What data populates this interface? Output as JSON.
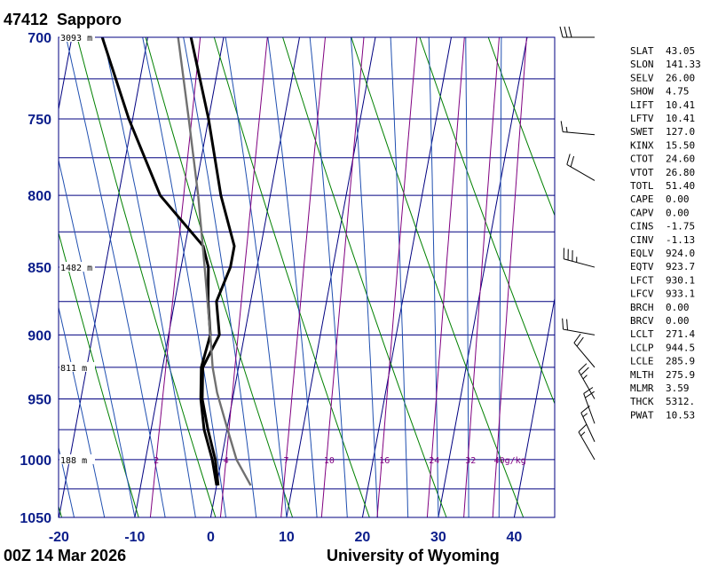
{
  "title": {
    "station": "47412",
    "name": "Sapporo",
    "time": "00Z 14 Mar 2026",
    "source": "University of Wyoming"
  },
  "colors": {
    "frame": "#000080",
    "grid": "#000080",
    "isotherm": "#000080",
    "dry_adiabat": "#008000",
    "moist_adiabat": "#1f4fb0",
    "mixing_ratio": "#800080",
    "temperature": "#000000",
    "dewpoint": "#000000",
    "parcel": "#707070"
  },
  "chart_data": {
    "type": "skew-t",
    "yaxis": {
      "label": "",
      "scale": "log",
      "ticks": [
        "700",
        "750",
        "800",
        "850",
        "900",
        "950",
        "1000",
        "1050"
      ],
      "range": [
        1050,
        700
      ]
    },
    "xaxis": {
      "label": "",
      "ticks": [
        "-20",
        "-10",
        "0",
        "10",
        "20",
        "30",
        "40"
      ],
      "range": [
        -20,
        45
      ]
    },
    "height_labels": [
      {
        "p": 700,
        "text": "3093 m"
      },
      {
        "p": 850,
        "text": "1482 m"
      },
      {
        "p": 925,
        "text": "811 m"
      },
      {
        "p": 1000,
        "text": "188 m"
      }
    ],
    "mixing_ratio_labels": [
      "2",
      "4",
      "7",
      "10",
      "16",
      "24",
      "32",
      "40g/kg"
    ],
    "mixing_ratio_values": [
      2,
      4,
      7,
      10,
      16,
      24,
      32,
      40
    ],
    "series": [
      {
        "kind": "temperature",
        "points": [
          {
            "p": 1022,
            "t": 0.2
          },
          {
            "p": 1000,
            "t": -0.8
          },
          {
            "p": 975,
            "t": -2.5
          },
          {
            "p": 950,
            "t": -4.0
          },
          {
            "p": 925,
            "t": -4.7
          },
          {
            "p": 900,
            "t": -3.3
          },
          {
            "p": 875,
            "t": -4.5
          },
          {
            "p": 850,
            "t": -3.5
          },
          {
            "p": 835,
            "t": -3.5
          },
          {
            "p": 800,
            "t": -6.5
          },
          {
            "p": 750,
            "t": -10.0
          },
          {
            "p": 700,
            "t": -14.3
          }
        ]
      },
      {
        "kind": "dewpoint",
        "points": [
          {
            "p": 1022,
            "t": 0.0
          },
          {
            "p": 1000,
            "t": -1.2
          },
          {
            "p": 975,
            "t": -3.0
          },
          {
            "p": 950,
            "t": -4.2
          },
          {
            "p": 925,
            "t": -4.9
          },
          {
            "p": 900,
            "t": -4.5
          },
          {
            "p": 875,
            "t": -5.6
          },
          {
            "p": 850,
            "t": -6.4
          },
          {
            "p": 835,
            "t": -7.6
          },
          {
            "p": 800,
            "t": -14.5
          },
          {
            "p": 750,
            "t": -20.5
          },
          {
            "p": 700,
            "t": -26.0
          }
        ]
      },
      {
        "kind": "parcel",
        "points": [
          {
            "p": 1022,
            "t": 4.5
          },
          {
            "p": 1000,
            "t": 2.0
          },
          {
            "p": 975,
            "t": 0.1
          },
          {
            "p": 945,
            "t": -2.2
          },
          {
            "p": 925,
            "t": -3.4
          },
          {
            "p": 900,
            "t": -4.5
          },
          {
            "p": 850,
            "t": -6.9
          },
          {
            "p": 800,
            "t": -9.5
          },
          {
            "p": 750,
            "t": -12.6
          },
          {
            "p": 700,
            "t": -16.0
          }
        ]
      }
    ],
    "wind_barbs": [
      {
        "p": 700,
        "dir": 270,
        "spd": 30
      },
      {
        "p": 760,
        "dir": 275,
        "spd": 15
      },
      {
        "p": 790,
        "dir": 300,
        "spd": 20
      },
      {
        "p": 850,
        "dir": 285,
        "spd": 35
      },
      {
        "p": 900,
        "dir": 280,
        "spd": 20
      },
      {
        "p": 925,
        "dir": 320,
        "spd": 20
      },
      {
        "p": 950,
        "dir": 330,
        "spd": 25
      },
      {
        "p": 970,
        "dir": 340,
        "spd": 20
      },
      {
        "p": 985,
        "dir": 335,
        "spd": 15
      },
      {
        "p": 1000,
        "dir": 330,
        "spd": 15
      }
    ]
  },
  "indices": [
    {
      "key": "SLAT",
      "value": "43.05"
    },
    {
      "key": "SLON",
      "value": "141.33"
    },
    {
      "key": "SELV",
      "value": "26.00"
    },
    {
      "key": "SHOW",
      "value": "4.75"
    },
    {
      "key": "LIFT",
      "value": "10.41"
    },
    {
      "key": "LFTV",
      "value": "10.41"
    },
    {
      "key": "SWET",
      "value": "127.0"
    },
    {
      "key": "KINX",
      "value": "15.50"
    },
    {
      "key": "CTOT",
      "value": "24.60"
    },
    {
      "key": "VTOT",
      "value": "26.80"
    },
    {
      "key": "TOTL",
      "value": "51.40"
    },
    {
      "key": "CAPE",
      "value": "0.00"
    },
    {
      "key": "CAPV",
      "value": "0.00"
    },
    {
      "key": "CINS",
      "value": "-1.75"
    },
    {
      "key": "CINV",
      "value": "-1.13"
    },
    {
      "key": "EQLV",
      "value": "924.0"
    },
    {
      "key": "EQTV",
      "value": "923.7"
    },
    {
      "key": "LFCT",
      "value": "930.1"
    },
    {
      "key": "LFCV",
      "value": "933.1"
    },
    {
      "key": "BRCH",
      "value": "0.00"
    },
    {
      "key": "BRCV",
      "value": "0.00"
    },
    {
      "key": "LCLT",
      "value": "271.4"
    },
    {
      "key": "LCLP",
      "value": "944.5"
    },
    {
      "key": "LCLE",
      "value": "285.9"
    },
    {
      "key": "MLTH",
      "value": "275.9"
    },
    {
      "key": "MLMR",
      "value": "3.59"
    },
    {
      "key": "THCK",
      "value": "5312."
    },
    {
      "key": "PWAT",
      "value": "10.53"
    }
  ]
}
